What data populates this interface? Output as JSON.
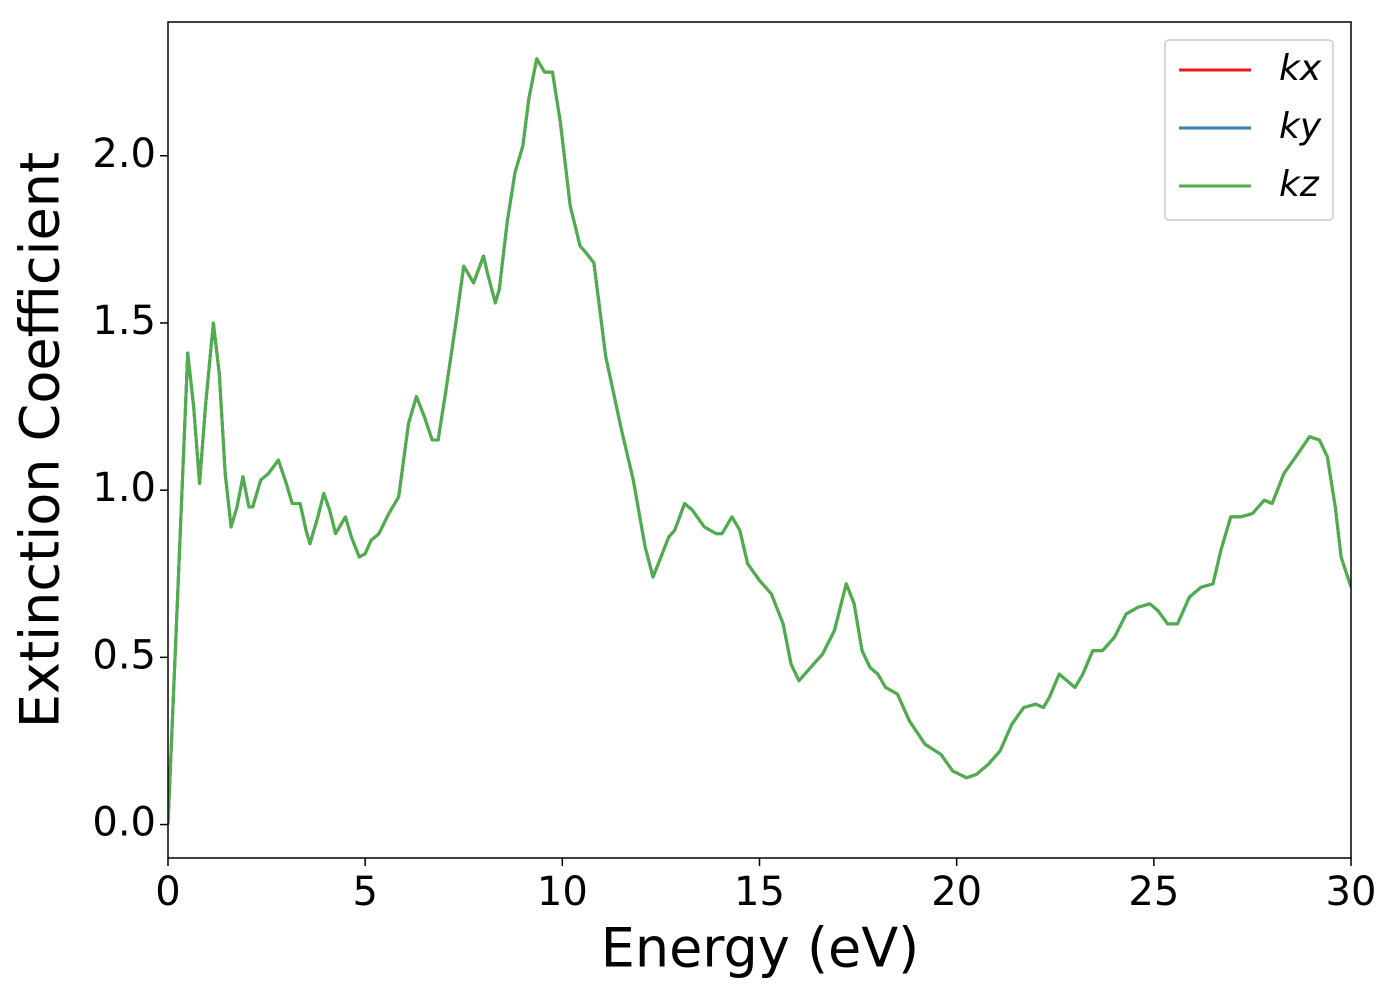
{
  "chart_data": {
    "type": "line",
    "xlabel": "Energy (eV)",
    "ylabel": "Extinction Coefficient",
    "x": [
      0,
      0.25,
      0.5,
      0.65,
      0.8,
      0.95,
      1.15,
      1.3,
      1.45,
      1.6,
      1.75,
      1.9,
      2.05,
      2.15,
      2.35,
      2.55,
      2.8,
      3.0,
      3.15,
      3.35,
      3.5,
      3.6,
      3.8,
      3.95,
      4.1,
      4.25,
      4.5,
      4.65,
      4.85,
      5.0,
      5.15,
      5.35,
      5.6,
      5.85,
      6.1,
      6.3,
      6.5,
      6.7,
      6.85,
      7.05,
      7.3,
      7.5,
      7.6,
      7.75,
      8.0,
      8.1,
      8.3,
      8.4,
      8.6,
      8.8,
      9.0,
      9.15,
      9.35,
      9.55,
      9.75,
      9.95,
      10.2,
      10.45,
      10.6,
      10.8,
      11.1,
      11.5,
      11.8,
      12.1,
      12.3,
      12.5,
      12.7,
      12.85,
      13.1,
      13.3,
      13.6,
      13.9,
      14.05,
      14.3,
      14.5,
      14.7,
      15.0,
      15.3,
      15.6,
      15.8,
      16.0,
      16.3,
      16.6,
      16.9,
      17.2,
      17.4,
      17.6,
      17.8,
      18.0,
      18.2,
      18.5,
      18.8,
      19.2,
      19.6,
      19.9,
      20.25,
      20.5,
      20.8,
      21.1,
      21.4,
      21.7,
      22.0,
      22.2,
      22.35,
      22.6,
      22.8,
      23.0,
      23.2,
      23.45,
      23.7,
      24.0,
      24.3,
      24.6,
      24.9,
      25.1,
      25.35,
      25.6,
      25.9,
      26.2,
      26.5,
      26.7,
      26.95,
      27.2,
      27.5,
      27.8,
      28.0,
      28.3,
      28.6,
      28.95,
      29.2,
      29.4,
      29.6,
      29.75,
      30.0
    ],
    "series": [
      {
        "name": "kx",
        "color": "#e41a1c",
        "values": [
          0.0,
          0.7,
          1.41,
          1.25,
          1.02,
          1.25,
          1.5,
          1.35,
          1.05,
          0.89,
          0.95,
          1.04,
          0.95,
          0.95,
          1.03,
          1.05,
          1.09,
          1.02,
          0.96,
          0.96,
          0.88,
          0.84,
          0.92,
          0.99,
          0.94,
          0.87,
          0.92,
          0.86,
          0.8,
          0.81,
          0.85,
          0.87,
          0.93,
          0.98,
          1.2,
          1.28,
          1.22,
          1.15,
          1.15,
          1.3,
          1.5,
          1.67,
          1.65,
          1.62,
          1.7,
          1.65,
          1.56,
          1.6,
          1.8,
          1.95,
          2.03,
          2.17,
          2.29,
          2.25,
          2.25,
          2.1,
          1.85,
          1.73,
          1.71,
          1.68,
          1.4,
          1.18,
          1.03,
          0.83,
          0.74,
          0.8,
          0.86,
          0.88,
          0.96,
          0.94,
          0.89,
          0.87,
          0.87,
          0.92,
          0.88,
          0.78,
          0.73,
          0.69,
          0.6,
          0.48,
          0.43,
          0.47,
          0.51,
          0.58,
          0.72,
          0.66,
          0.52,
          0.47,
          0.45,
          0.41,
          0.39,
          0.31,
          0.24,
          0.21,
          0.16,
          0.14,
          0.15,
          0.18,
          0.22,
          0.3,
          0.35,
          0.36,
          0.35,
          0.38,
          0.45,
          0.43,
          0.41,
          0.45,
          0.52,
          0.52,
          0.56,
          0.63,
          0.65,
          0.66,
          0.64,
          0.6,
          0.6,
          0.68,
          0.71,
          0.72,
          0.82,
          0.92,
          0.92,
          0.93,
          0.97,
          0.96,
          1.05,
          1.1,
          1.16,
          1.15,
          1.1,
          0.95,
          0.8,
          0.71
        ]
      },
      {
        "name": "ky",
        "color": "#377eb8",
        "values": [
          0.0,
          0.7,
          1.41,
          1.25,
          1.02,
          1.25,
          1.5,
          1.35,
          1.05,
          0.89,
          0.95,
          1.04,
          0.95,
          0.95,
          1.03,
          1.05,
          1.09,
          1.02,
          0.96,
          0.96,
          0.88,
          0.84,
          0.92,
          0.99,
          0.94,
          0.87,
          0.92,
          0.86,
          0.8,
          0.81,
          0.85,
          0.87,
          0.93,
          0.98,
          1.2,
          1.28,
          1.22,
          1.15,
          1.15,
          1.3,
          1.5,
          1.67,
          1.65,
          1.62,
          1.7,
          1.65,
          1.56,
          1.6,
          1.8,
          1.95,
          2.03,
          2.17,
          2.29,
          2.25,
          2.25,
          2.1,
          1.85,
          1.73,
          1.71,
          1.68,
          1.4,
          1.18,
          1.03,
          0.83,
          0.74,
          0.8,
          0.86,
          0.88,
          0.96,
          0.94,
          0.89,
          0.87,
          0.87,
          0.92,
          0.88,
          0.78,
          0.73,
          0.69,
          0.6,
          0.48,
          0.43,
          0.47,
          0.51,
          0.58,
          0.72,
          0.66,
          0.52,
          0.47,
          0.45,
          0.41,
          0.39,
          0.31,
          0.24,
          0.21,
          0.16,
          0.14,
          0.15,
          0.18,
          0.22,
          0.3,
          0.35,
          0.36,
          0.35,
          0.38,
          0.45,
          0.43,
          0.41,
          0.45,
          0.52,
          0.52,
          0.56,
          0.63,
          0.65,
          0.66,
          0.64,
          0.6,
          0.6,
          0.68,
          0.71,
          0.72,
          0.82,
          0.92,
          0.92,
          0.93,
          0.97,
          0.96,
          1.05,
          1.1,
          1.16,
          1.15,
          1.1,
          0.95,
          0.8,
          0.71
        ]
      },
      {
        "name": "kz",
        "color": "#4daf4a",
        "values": [
          0.0,
          0.7,
          1.41,
          1.25,
          1.02,
          1.25,
          1.5,
          1.35,
          1.05,
          0.89,
          0.95,
          1.04,
          0.95,
          0.95,
          1.03,
          1.05,
          1.09,
          1.02,
          0.96,
          0.96,
          0.88,
          0.84,
          0.92,
          0.99,
          0.94,
          0.87,
          0.92,
          0.86,
          0.8,
          0.81,
          0.85,
          0.87,
          0.93,
          0.98,
          1.2,
          1.28,
          1.22,
          1.15,
          1.15,
          1.3,
          1.5,
          1.67,
          1.65,
          1.62,
          1.7,
          1.65,
          1.56,
          1.6,
          1.8,
          1.95,
          2.03,
          2.17,
          2.29,
          2.25,
          2.25,
          2.1,
          1.85,
          1.73,
          1.71,
          1.68,
          1.4,
          1.18,
          1.03,
          0.83,
          0.74,
          0.8,
          0.86,
          0.88,
          0.96,
          0.94,
          0.89,
          0.87,
          0.87,
          0.92,
          0.88,
          0.78,
          0.73,
          0.69,
          0.6,
          0.48,
          0.43,
          0.47,
          0.51,
          0.58,
          0.72,
          0.66,
          0.52,
          0.47,
          0.45,
          0.41,
          0.39,
          0.31,
          0.24,
          0.21,
          0.16,
          0.14,
          0.15,
          0.18,
          0.22,
          0.3,
          0.35,
          0.36,
          0.35,
          0.38,
          0.45,
          0.43,
          0.41,
          0.45,
          0.52,
          0.52,
          0.56,
          0.63,
          0.65,
          0.66,
          0.64,
          0.6,
          0.6,
          0.68,
          0.71,
          0.72,
          0.82,
          0.92,
          0.92,
          0.93,
          0.97,
          0.96,
          1.05,
          1.1,
          1.16,
          1.15,
          1.1,
          0.95,
          0.8,
          0.71
        ]
      }
    ],
    "xlim": [
      0,
      30
    ],
    "xticks": [
      0,
      5,
      10,
      15,
      20,
      25,
      30
    ],
    "ylim": [
      -0.1,
      2.4
    ],
    "yticks": [
      {
        "value": 0,
        "label": "0.0"
      },
      0.5,
      {
        "value": 1,
        "label": "1.0"
      },
      1.5,
      {
        "value": 2,
        "label": "2.0"
      }
    ],
    "grid": false,
    "legend": "upper right"
  }
}
